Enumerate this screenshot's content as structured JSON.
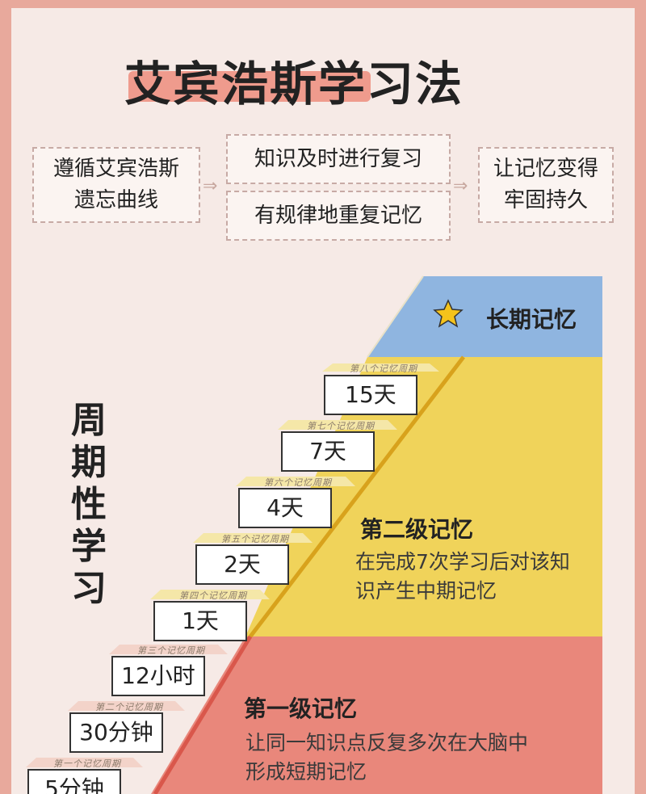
{
  "title": "艾宾浩斯学习法",
  "top_flow": {
    "left_line1": "遵循艾宾浩斯",
    "left_line2": "遗忘曲线",
    "mid_top": "知识及时进行复习",
    "mid_bottom": "有规律地重复记忆",
    "right_line1": "让记忆变得",
    "right_line2": "牢固持久",
    "arrow": "⇒"
  },
  "side_label": [
    "周",
    "期",
    "性",
    "学",
    "习"
  ],
  "long_term": {
    "label": "长期记忆",
    "icon": "star-icon"
  },
  "level2": {
    "title": "第二级记忆",
    "desc_line1": "在完成7次学习后对该知",
    "desc_line2": "识产生中期记忆"
  },
  "level1": {
    "title": "第一级记忆",
    "desc_line1": "让同一知识点反复多次在大脑中",
    "desc_line2": "形成短期记忆"
  },
  "steps": [
    {
      "cycle": "第一个记忆周期",
      "value": "5分钟"
    },
    {
      "cycle": "第二个记忆周期",
      "value": "30分钟"
    },
    {
      "cycle": "第三个记忆周期",
      "value": "12小时"
    },
    {
      "cycle": "第四个记忆周期",
      "value": "1天"
    },
    {
      "cycle": "第五个记忆周期",
      "value": "2天"
    },
    {
      "cycle": "第六个记忆周期",
      "value": "4天"
    },
    {
      "cycle": "第七个记忆周期",
      "value": "7天"
    },
    {
      "cycle": "第八个记忆周期",
      "value": "15天"
    }
  ],
  "colors": {
    "blue": "#8fb5e0",
    "yellow": "#f0d35a",
    "red": "#e9877b",
    "accent_line_red": "#d9574b",
    "accent_line_yellow": "#d8a21c",
    "star": "#f5c31b"
  }
}
